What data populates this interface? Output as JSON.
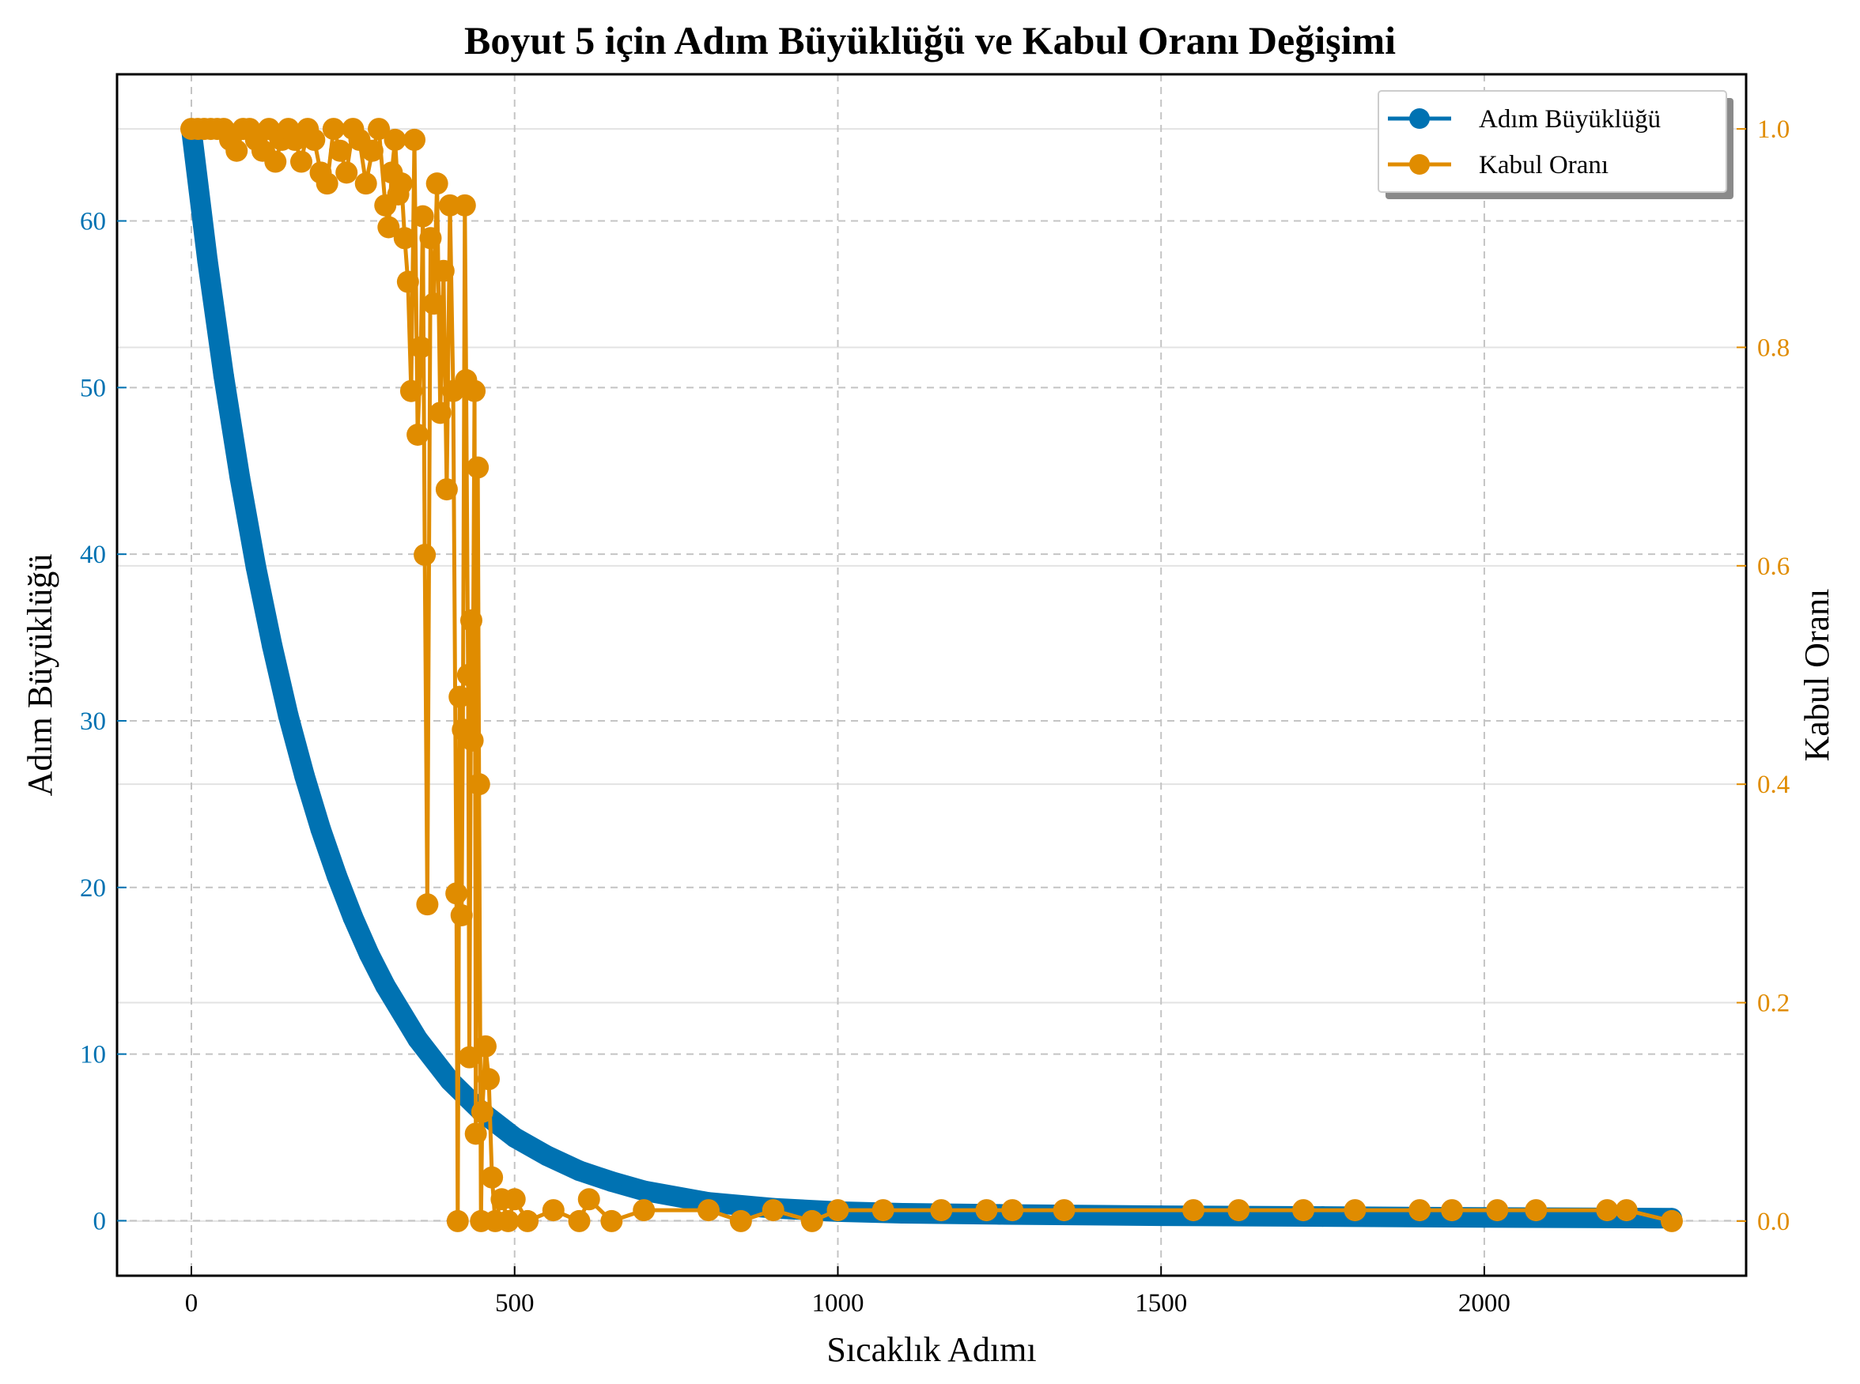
{
  "chart_data": {
    "type": "line",
    "title": "Boyut 5 için Adım Büyüklüğü ve Kabul Oranı Değişimi",
    "xlabel": "Sıcaklık Adımı",
    "ylabel": "Adım Büyüklüğü",
    "y2label": "Kabul Oranı",
    "xlim": [
      -115,
      2405
    ],
    "ylim": [
      -3.3,
      68.8
    ],
    "y2lim": [
      -0.05,
      1.05
    ],
    "xticks": [
      0,
      500,
      1000,
      1500,
      2000
    ],
    "yticks": [
      0,
      10,
      20,
      30,
      40,
      50,
      60
    ],
    "y2ticks": [
      0.0,
      0.2,
      0.4,
      0.6,
      0.8,
      1.0
    ],
    "xtick_labels": [
      "0",
      "500",
      "1000",
      "1500",
      "2000"
    ],
    "ytick_labels": [
      "0",
      "10",
      "20",
      "30",
      "40",
      "50",
      "60"
    ],
    "y2tick_labels": [
      "0.0",
      "0.2",
      "0.4",
      "0.6",
      "0.8",
      "1.0"
    ],
    "grid": true,
    "legend_position": "top-right",
    "colors": {
      "step": "#0072b2",
      "accept": "#e08c00"
    },
    "series": [
      {
        "name": "Adım Büyüklüğü",
        "axis": "left",
        "x": [
          0,
          25,
          50,
          75,
          100,
          125,
          150,
          175,
          200,
          225,
          250,
          275,
          300,
          350,
          400,
          450,
          500,
          550,
          600,
          650,
          700,
          800,
          900,
          1000,
          1100,
          1250,
          1500,
          1750,
          2000,
          2290
        ],
        "y": [
          65.5,
          57.6,
          50.7,
          44.6,
          39.2,
          34.5,
          30.3,
          26.7,
          23.5,
          20.7,
          18.2,
          16.0,
          14.1,
          10.9,
          8.4,
          6.5,
          5.0,
          3.9,
          3.0,
          2.35,
          1.8,
          1.1,
          0.75,
          0.55,
          0.45,
          0.38,
          0.3,
          0.25,
          0.2,
          0.15
        ]
      },
      {
        "name": "Kabul Oranı",
        "axis": "right",
        "x": [
          0,
          10,
          20,
          30,
          40,
          50,
          60,
          70,
          80,
          90,
          100,
          110,
          120,
          130,
          140,
          150,
          160,
          170,
          180,
          190,
          200,
          210,
          220,
          230,
          240,
          250,
          260,
          270,
          280,
          290,
          300,
          305,
          310,
          315,
          320,
          325,
          330,
          335,
          340,
          345,
          350,
          355,
          358,
          361,
          365,
          370,
          375,
          380,
          385,
          390,
          395,
          400,
          405,
          410,
          412,
          415,
          418,
          420,
          423,
          425,
          428,
          430,
          433,
          435,
          438,
          440,
          443,
          445,
          448,
          450,
          455,
          460,
          465,
          470,
          480,
          490,
          500,
          520,
          560,
          600,
          615,
          650,
          700,
          800,
          850,
          900,
          960,
          1000,
          1070,
          1160,
          1230,
          1270,
          1350,
          1550,
          1620,
          1720,
          1800,
          1900,
          1950,
          2020,
          2080,
          2190,
          2220,
          2290
        ],
        "y": [
          1.0,
          1.0,
          1.0,
          1.0,
          1.0,
          1.0,
          0.99,
          0.98,
          1.0,
          1.0,
          0.99,
          0.98,
          1.0,
          0.97,
          0.99,
          1.0,
          0.99,
          0.97,
          1.0,
          0.99,
          0.96,
          0.95,
          1.0,
          0.98,
          0.96,
          1.0,
          0.99,
          0.95,
          0.98,
          1.0,
          0.93,
          0.91,
          0.96,
          0.99,
          0.94,
          0.95,
          0.9,
          0.86,
          0.76,
          0.99,
          0.72,
          0.8,
          0.92,
          0.61,
          0.29,
          0.9,
          0.84,
          0.95,
          0.74,
          0.87,
          0.67,
          0.93,
          0.76,
          0.3,
          0.0,
          0.48,
          0.28,
          0.45,
          0.93,
          0.77,
          0.5,
          0.15,
          0.55,
          0.44,
          0.76,
          0.08,
          0.69,
          0.4,
          0.0,
          0.1,
          0.16,
          0.13,
          0.04,
          0.0,
          0.02,
          0.0,
          0.02,
          0.0,
          0.01,
          0.0,
          0.02,
          0.0,
          0.01,
          0.01,
          0.0,
          0.01,
          0.0,
          0.01,
          0.01,
          0.01,
          0.01,
          0.01,
          0.01,
          0.01,
          0.01,
          0.01,
          0.01,
          0.01,
          0.01,
          0.01,
          0.01,
          0.01,
          0.01,
          0.0
        ]
      }
    ]
  }
}
